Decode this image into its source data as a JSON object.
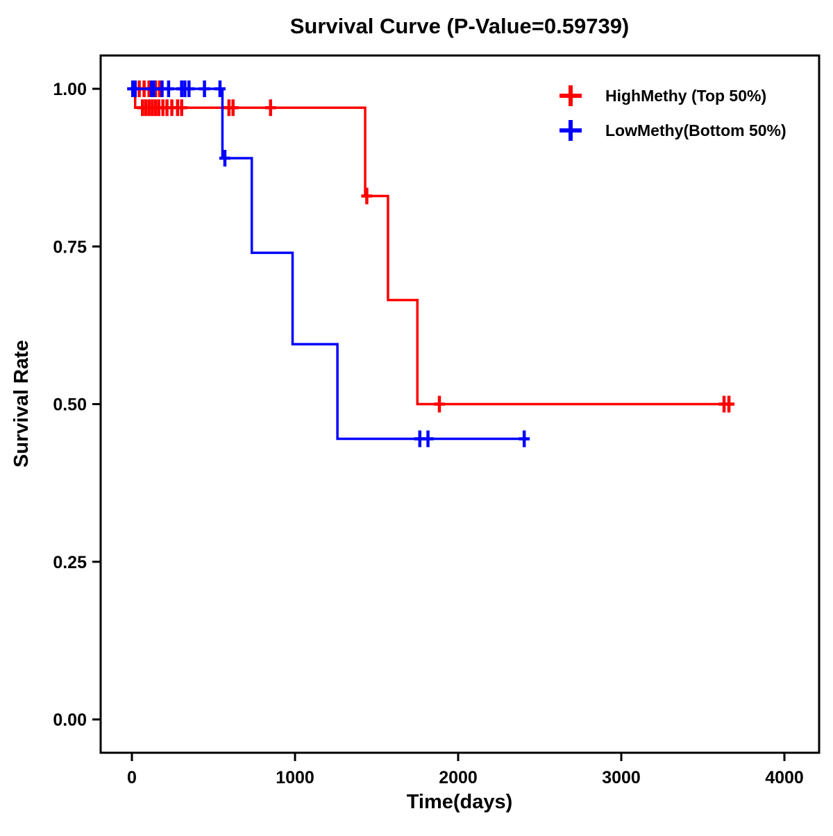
{
  "chart_data": {
    "type": "line",
    "subtype": "kaplan-meier-step",
    "title": "Survival Curve (P-Value=0.59739)",
    "p_value": "0.59739",
    "xlabel": "Time(days)",
    "ylabel": "Survival Rate",
    "xlim": [
      0,
      4000
    ],
    "ylim": [
      0,
      1
    ],
    "xticks": [
      0,
      1000,
      2000,
      3000,
      4000
    ],
    "xtick_labels": [
      "0",
      "1000",
      "2000",
      "3000",
      "4000"
    ],
    "yticks": [
      0,
      0.25,
      0.5,
      0.75,
      1
    ],
    "ytick_labels": [
      "0.00",
      "0.25",
      "0.50",
      "0.75",
      "1.00"
    ],
    "grid": false,
    "legend_position": "top-right-inside",
    "series": [
      {
        "name": "HighMethy (Top 50%)",
        "color": "#FF0000",
        "steps": [
          [
            0,
            1.0
          ],
          [
            20,
            1.0
          ],
          [
            20,
            0.97
          ],
          [
            1430,
            0.97
          ],
          [
            1430,
            0.83
          ],
          [
            1570,
            0.83
          ],
          [
            1570,
            0.665
          ],
          [
            1750,
            0.665
          ],
          [
            1750,
            0.5
          ],
          [
            3660,
            0.5
          ]
        ],
        "censors": [
          [
            45,
            1.0
          ],
          [
            75,
            1.0
          ],
          [
            105,
            1.0
          ],
          [
            145,
            1.0
          ],
          [
            170,
            1.0
          ],
          [
            65,
            0.97
          ],
          [
            85,
            0.97
          ],
          [
            105,
            0.97
          ],
          [
            125,
            0.97
          ],
          [
            145,
            0.97
          ],
          [
            165,
            0.97
          ],
          [
            190,
            0.97
          ],
          [
            215,
            0.97
          ],
          [
            245,
            0.97
          ],
          [
            280,
            0.97
          ],
          [
            305,
            0.97
          ],
          [
            595,
            0.97
          ],
          [
            620,
            0.97
          ],
          [
            850,
            0.97
          ],
          [
            1440,
            0.83
          ],
          [
            1885,
            0.5
          ],
          [
            3630,
            0.5
          ],
          [
            3660,
            0.5
          ]
        ]
      },
      {
        "name": "LowMethy(Bottom 50%)",
        "color": "#0000FF",
        "steps": [
          [
            0,
            1.0
          ],
          [
            555,
            1.0
          ],
          [
            555,
            0.89
          ],
          [
            735,
            0.89
          ],
          [
            735,
            0.74
          ],
          [
            985,
            0.74
          ],
          [
            985,
            0.595
          ],
          [
            1260,
            0.595
          ],
          [
            1260,
            0.445
          ],
          [
            2405,
            0.445
          ]
        ],
        "censors": [
          [
            5,
            1.0
          ],
          [
            20,
            1.0
          ],
          [
            120,
            1.0
          ],
          [
            135,
            1.0
          ],
          [
            185,
            1.0
          ],
          [
            225,
            1.0
          ],
          [
            305,
            1.0
          ],
          [
            325,
            1.0
          ],
          [
            350,
            1.0
          ],
          [
            445,
            1.0
          ],
          [
            540,
            1.0
          ],
          [
            570,
            0.89
          ],
          [
            1765,
            0.445
          ],
          [
            1815,
            0.445
          ],
          [
            2405,
            0.445
          ]
        ]
      }
    ]
  }
}
